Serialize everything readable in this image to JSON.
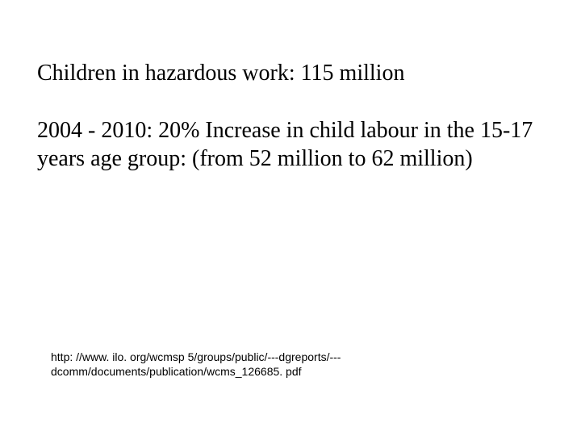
{
  "slide": {
    "line1": "Children in hazardous work: 115 million",
    "para2": "2004 - 2010: 20% Increase in child labour in the 15-17 years age group: (from 52 million to 62 million)",
    "citation": "http: //www. ilo. org/wcmsp 5/groups/public/---dgreports/---dcomm/documents/publication/wcms_126685. pdf"
  },
  "style": {
    "background_color": "#ffffff",
    "text_color": "#000000",
    "body_font_family": "Times New Roman",
    "body_font_size_pt": 21,
    "citation_font_family": "Arial",
    "citation_font_size_pt": 10
  }
}
